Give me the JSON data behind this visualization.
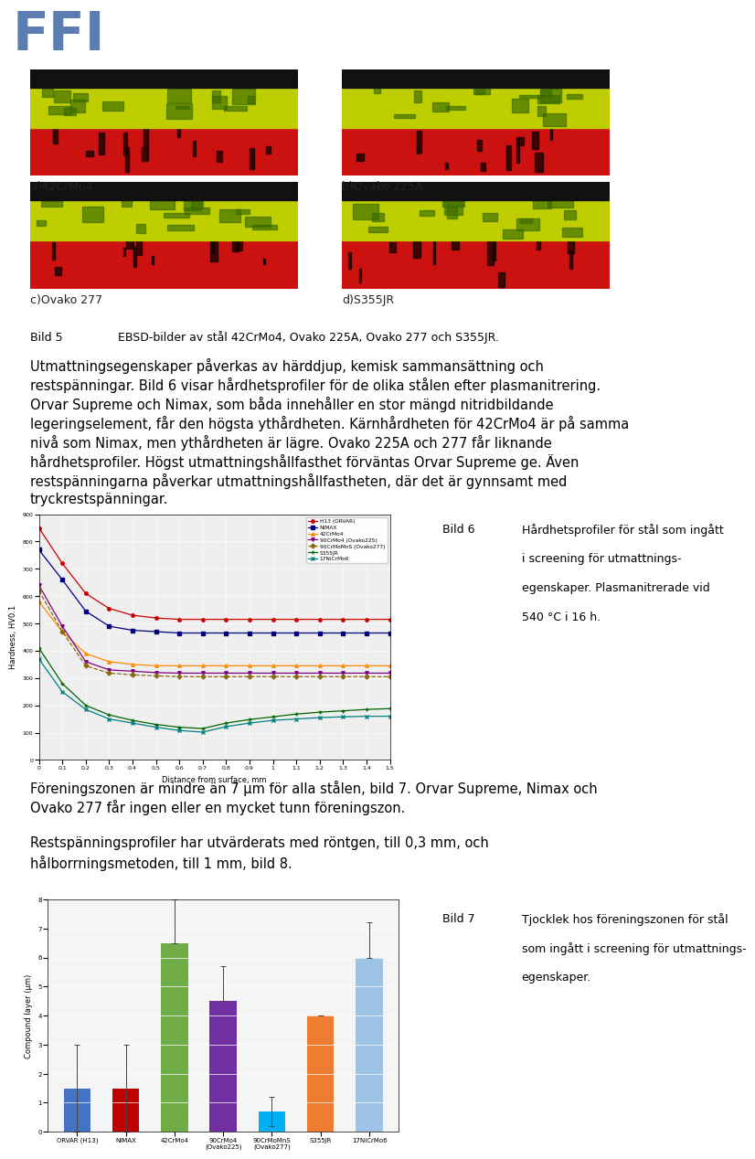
{
  "ffi_color": "#5b7db1",
  "img_labels": [
    "a)42CrMo4",
    "b)Ovako 225A",
    "c)Ovako 277",
    "d)S355JR"
  ],
  "bild5_label": "Bild 5",
  "bild5_text": "EBSD-bilder av stål 42CrMo4, Ovako 225A, Ovako 277 och S355JR.",
  "para1_lines": [
    "Utmattningsegenskaper påverkas av härddjup, kemisk sammansättning och",
    "restspänningar. Bild 6 visar hårdhetsprofiler för de olika stålen efter plasmanitrering.",
    "Orvar Supreme och Nimax, som båda innehåller en stor mängd nitridbildande",
    "legeringselement, får den högsta ythårdheten. Kärnhårdheten för 42CrMo4 är på samma",
    "nivå som Nimax, men ythårdheten är lägre. Ovako 225A och 277 får liknande",
    "hårdhetsprofiler. Högst utmattningshållfasthet förväntas Orvar Supreme ge. Även",
    "restspänningarna påverkar utmattningshållfastheten, där det är gynnsamt med",
    "tryckrestspänningar."
  ],
  "hardness_x": [
    0,
    0.1,
    0.2,
    0.3,
    0.4,
    0.5,
    0.6,
    0.7,
    0.8,
    0.9,
    1.0,
    1.1,
    1.2,
    1.3,
    1.4,
    1.5
  ],
  "hardness_series": [
    {
      "name": "H13 (ORVAR)",
      "color": "#cc0000",
      "values": [
        850,
        720,
        610,
        555,
        530,
        520,
        515,
        515,
        515,
        515,
        515,
        515,
        515,
        515,
        515,
        515
      ],
      "style": "-",
      "marker": "o",
      "markersize": 2.5
    },
    {
      "name": "NIMAX",
      "color": "#000080",
      "values": [
        770,
        660,
        545,
        490,
        475,
        470,
        465,
        465,
        465,
        465,
        465,
        465,
        465,
        465,
        465,
        465
      ],
      "style": "-",
      "marker": "s",
      "markersize": 2.5
    },
    {
      "name": "42CrMo4",
      "color": "#ff8c00",
      "values": [
        580,
        470,
        390,
        360,
        350,
        345,
        345,
        345,
        345,
        345,
        345,
        345,
        345,
        345,
        345,
        345
      ],
      "style": "-",
      "marker": "^",
      "markersize": 2.5
    },
    {
      "name": "90CrMo4 (Ovako225)",
      "color": "#800080",
      "values": [
        640,
        490,
        360,
        330,
        325,
        320,
        318,
        318,
        318,
        318,
        318,
        318,
        318,
        318,
        318,
        318
      ],
      "style": "-",
      "marker": "v",
      "markersize": 2.5
    },
    {
      "name": "90CrMoMnS (Ovako277)",
      "color": "#8b6914",
      "values": [
        620,
        470,
        345,
        318,
        312,
        308,
        305,
        305,
        305,
        305,
        305,
        305,
        305,
        305,
        305,
        305
      ],
      "style": "--",
      "marker": "D",
      "markersize": 2.5
    },
    {
      "name": "S355JR",
      "color": "#006400",
      "values": [
        410,
        280,
        200,
        165,
        145,
        130,
        120,
        115,
        135,
        148,
        158,
        168,
        175,
        180,
        185,
        188
      ],
      "style": "-",
      "marker": "+",
      "markersize": 3.5
    },
    {
      "name": "17NiCrMo6",
      "color": "#008080",
      "values": [
        370,
        250,
        185,
        150,
        135,
        120,
        108,
        102,
        122,
        135,
        145,
        150,
        155,
        158,
        160,
        160
      ],
      "style": "-",
      "marker": "x",
      "markersize": 3.5
    }
  ],
  "hardness_xlabel": "Distance from surface, mm",
  "hardness_ylabel": "Hardness, HV0.1",
  "hardness_ylim": [
    0,
    900
  ],
  "hardness_yticks": [
    0,
    100,
    200,
    300,
    400,
    500,
    600,
    700,
    800,
    900
  ],
  "hardness_xlim": [
    0,
    1.5
  ],
  "hardness_xticks": [
    0,
    0.1,
    0.2,
    0.3,
    0.4,
    0.5,
    0.6,
    0.7,
    0.8,
    0.9,
    1.0,
    1.1,
    1.2,
    1.3,
    1.4,
    1.5
  ],
  "bild6_label": "Bild 6",
  "bild6_lines": [
    "Hårdhetsprofiler för stål som ingått",
    "i screening för utmattnings-",
    "egenskaper. Plasmanitrerade vid",
    "540 °C i 16 h."
  ],
  "para2_lines": [
    "Föreningszonen är mindre än 7 μm för alla stålen, bild 7. Orvar Supreme, Nimax och",
    "Ovako 277 får ingen eller en mycket tunn föreningszon."
  ],
  "para3_lines": [
    "Restspänningsprofiler har utvärderats med röntgen, till 0,3 mm, och",
    "hålborrningsmetoden, till 1 mm, bild 8."
  ],
  "bar_categories": [
    "ORVAR (H13)",
    "NIMAX",
    "42CrMo4",
    "90CrMo4\n(Ovako225)",
    "90CrMoMnS\n(Ovako277)",
    "S355JR",
    "17NiCrMo6"
  ],
  "bar_values": [
    1.5,
    1.5,
    6.5,
    4.5,
    0.7,
    4.0,
    6.0
  ],
  "bar_errors_upper": [
    1.5,
    1.5,
    1.5,
    1.2,
    0.5,
    0.0,
    1.2
  ],
  "bar_errors_lower": [
    1.5,
    1.5,
    0.0,
    0.0,
    0.5,
    0.0,
    0.0
  ],
  "bar_colors": [
    "#4472c4",
    "#c00000",
    "#70ad47",
    "#7030a0",
    "#00b0f0",
    "#ed7d31",
    "#9dc3e6"
  ],
  "bar_ylabel": "Compound layer (μm)",
  "bar_ylim": [
    0,
    8
  ],
  "bar_yticks": [
    0,
    1,
    2,
    3,
    4,
    5,
    6,
    7,
    8
  ],
  "bild7_label": "Bild 7",
  "bild7_lines": [
    "Tjocklek hos föreningszonen för stål",
    "som ingått i screening för utmattnings-",
    "egenskaper."
  ],
  "bg_color": "#ffffff"
}
